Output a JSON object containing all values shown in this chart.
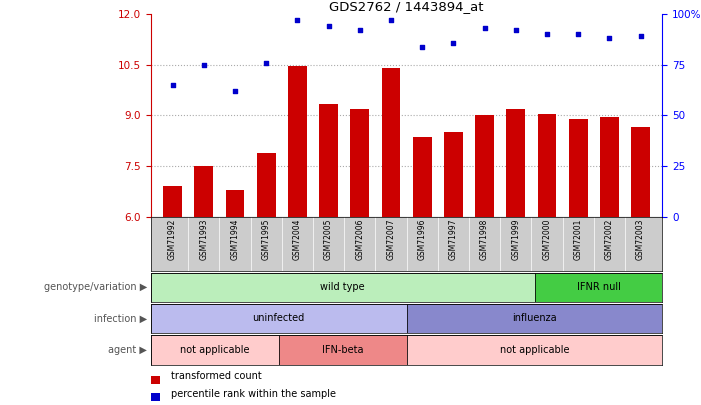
{
  "title": "GDS2762 / 1443894_at",
  "samples": [
    "GSM71992",
    "GSM71993",
    "GSM71994",
    "GSM71995",
    "GSM72004",
    "GSM72005",
    "GSM72006",
    "GSM72007",
    "GSM71996",
    "GSM71997",
    "GSM71998",
    "GSM71999",
    "GSM72000",
    "GSM72001",
    "GSM72002",
    "GSM72003"
  ],
  "bar_values": [
    6.9,
    7.5,
    6.8,
    7.9,
    10.45,
    9.35,
    9.2,
    10.4,
    8.35,
    8.5,
    9.0,
    9.2,
    9.05,
    8.9,
    8.95,
    8.65
  ],
  "dot_values": [
    65,
    75,
    62,
    76,
    97,
    94,
    92,
    97,
    84,
    86,
    93,
    92,
    90,
    90,
    88,
    89
  ],
  "ylim": [
    6,
    12
  ],
  "yticks": [
    6,
    7.5,
    9,
    10.5,
    12
  ],
  "y2ticks": [
    0,
    25,
    50,
    75,
    100
  ],
  "bar_color": "#cc0000",
  "dot_color": "#0000cc",
  "grid_color": "#aaaaaa",
  "tick_area_bg": "#cccccc",
  "genotype_row": [
    {
      "label": "wild type",
      "start": 0,
      "end": 12,
      "color": "#bbeebb"
    },
    {
      "label": "IFNR null",
      "start": 12,
      "end": 16,
      "color": "#44cc44"
    }
  ],
  "infection_row": [
    {
      "label": "uninfected",
      "start": 0,
      "end": 8,
      "color": "#bbbbee"
    },
    {
      "label": "influenza",
      "start": 8,
      "end": 16,
      "color": "#8888cc"
    }
  ],
  "agent_row": [
    {
      "label": "not applicable",
      "start": 0,
      "end": 4,
      "color": "#ffcccc"
    },
    {
      "label": "IFN-beta",
      "start": 4,
      "end": 8,
      "color": "#ee8888"
    },
    {
      "label": "not applicable",
      "start": 8,
      "end": 16,
      "color": "#ffcccc"
    }
  ],
  "row_labels": [
    "genotype/variation",
    "infection",
    "agent"
  ],
  "legend_bar_label": "transformed count",
  "legend_dot_label": "percentile rank within the sample",
  "bar_color_legend": "#cc0000",
  "dot_color_legend": "#0000cc"
}
